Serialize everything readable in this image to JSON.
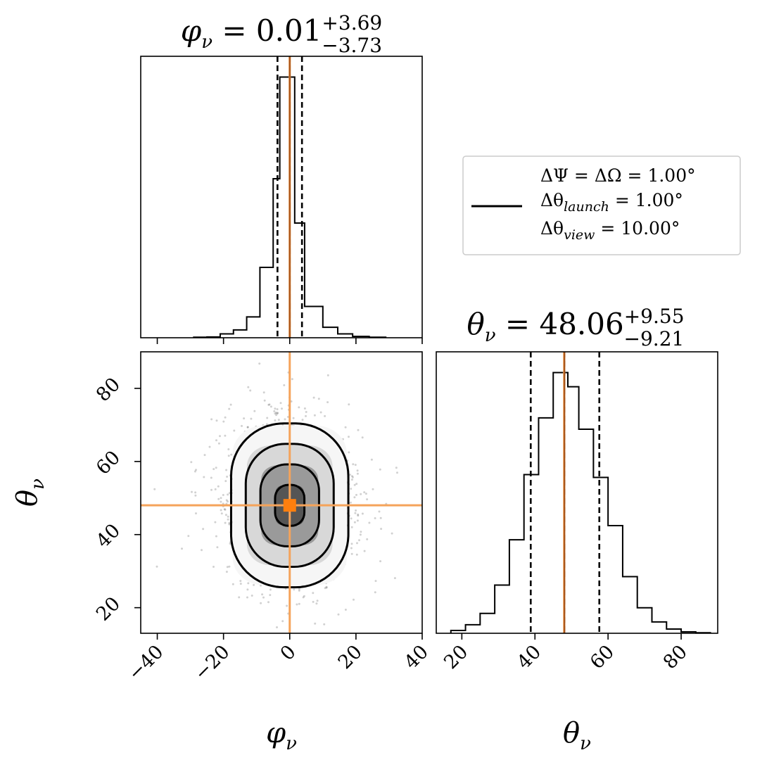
{
  "chart_data": [
    {
      "type": "histogram",
      "panel": "phi-marginal",
      "title": {
        "param": "φ",
        "sub": "ν",
        "median": "= 0.01",
        "plus": "+3.69",
        "minus": "−3.73"
      },
      "xlim": [
        -45,
        40
      ],
      "bins": [
        {
          "x0": -29,
          "x1": -25,
          "count": 0.002
        },
        {
          "x0": -25,
          "x1": -21,
          "count": 0.003
        },
        {
          "x0": -21,
          "x1": -17,
          "count": 0.015
        },
        {
          "x0": -17,
          "x1": -13,
          "count": 0.03
        },
        {
          "x0": -13,
          "x1": -9,
          "count": 0.08
        },
        {
          "x0": -9,
          "x1": -5,
          "count": 0.27
        },
        {
          "x0": -5,
          "x1": -3,
          "count": 0.61
        },
        {
          "x0": -3,
          "x1": 1.5,
          "count": 1.0
        },
        {
          "x0": 1.5,
          "x1": 4.5,
          "count": 0.44
        },
        {
          "x0": 4.5,
          "x1": 10,
          "count": 0.12
        },
        {
          "x0": 10,
          "x1": 14.5,
          "count": 0.04
        },
        {
          "x0": 14.5,
          "x1": 19,
          "count": 0.015
        },
        {
          "x0": 19,
          "x1": 24,
          "count": 0.005
        },
        {
          "x0": 24,
          "x1": 29,
          "count": 0.002
        }
      ],
      "quantiles": [
        -3.7,
        0.01,
        3.7
      ],
      "truth": 0
    },
    {
      "type": "histogram",
      "panel": "theta-marginal",
      "title": {
        "param": "θ",
        "sub": "ν",
        "median": "= 48.06",
        "plus": "+9.55",
        "minus": "−9.21"
      },
      "xlim": [
        13,
        90
      ],
      "bins": [
        {
          "x0": 17,
          "x1": 21,
          "count": 0.01
        },
        {
          "x0": 21,
          "x1": 25,
          "count": 0.03
        },
        {
          "x0": 25,
          "x1": 29,
          "count": 0.07
        },
        {
          "x0": 29,
          "x1": 33,
          "count": 0.17
        },
        {
          "x0": 33,
          "x1": 37,
          "count": 0.33
        },
        {
          "x0": 37,
          "x1": 41,
          "count": 0.56
        },
        {
          "x0": 41,
          "x1": 45,
          "count": 0.76
        },
        {
          "x0": 45,
          "x1": 49,
          "count": 0.92
        },
        {
          "x0": 49,
          "x1": 52,
          "count": 0.87
        },
        {
          "x0": 52,
          "x1": 56,
          "count": 0.72
        },
        {
          "x0": 56,
          "x1": 60,
          "count": 0.55
        },
        {
          "x0": 60,
          "x1": 64,
          "count": 0.38
        },
        {
          "x0": 64,
          "x1": 68,
          "count": 0.2
        },
        {
          "x0": 68,
          "x1": 72,
          "count": 0.09
        },
        {
          "x0": 72,
          "x1": 76,
          "count": 0.04
        },
        {
          "x0": 76,
          "x1": 80,
          "count": 0.015
        },
        {
          "x0": 80,
          "x1": 84,
          "count": 0.005
        },
        {
          "x0": 84,
          "x1": 88,
          "count": 0.002
        }
      ],
      "quantiles": [
        38.85,
        48.06,
        57.61
      ],
      "truth": 48,
      "xticks": [
        20,
        40,
        60,
        80
      ],
      "xlabel": {
        "param": "θ",
        "sub": "ν"
      }
    },
    {
      "type": "heatmap",
      "panel": "joint-phi-theta",
      "xlim": [
        -45,
        40
      ],
      "ylim": [
        13,
        90
      ],
      "xticks": [
        -40,
        -20,
        0,
        20,
        40
      ],
      "xtick_labels": [
        "−40",
        "−20",
        "0",
        "20",
        "40"
      ],
      "yticks": [
        20,
        40,
        60,
        80
      ],
      "xlabel": {
        "param": "φ",
        "sub": "ν"
      },
      "ylabel": {
        "param": "θ",
        "sub": "ν"
      },
      "truth": [
        0,
        48
      ],
      "center": [
        0,
        48
      ],
      "spread": [
        7.5,
        9.5
      ],
      "contour_levels_sigma": [
        0.5,
        1.0,
        1.5,
        2.0
      ],
      "density_levels": [
        {
          "sigma": 0.5,
          "fill": "#555555"
        },
        {
          "sigma": 1.0,
          "fill": "#9a9a9a"
        },
        {
          "sigma": 1.5,
          "fill": "#d8d8d8"
        },
        {
          "sigma": 2.0,
          "fill": "#f6f6f6"
        }
      ]
    }
  ],
  "legend": {
    "lines": [
      {
        "text": "ΔΨ = ΔΩ = 1.00°"
      },
      {
        "text": "Δθ",
        "sub": "launch",
        "rest": " = 1.00°"
      },
      {
        "text": "Δθ",
        "sub": "view",
        "rest": " = 10.00°"
      }
    ]
  },
  "colors": {
    "truth": "#f5a35a",
    "median": "#9c4a12",
    "line": "#000000",
    "grid": "#000000"
  }
}
